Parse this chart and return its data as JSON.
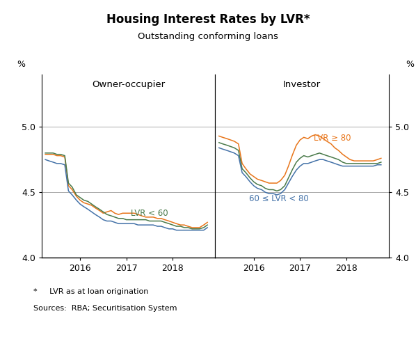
{
  "title": "Housing Interest Rates by LVR*",
  "subtitle": "Outstanding conforming loans",
  "footnote1": "*     LVR as at loan origination",
  "footnote2": "Sources:  RBA; Securitisation System",
  "left_panel_title": "Owner-occupier",
  "right_panel_title": "Investor",
  "ylabel_left": "%",
  "ylabel_right": "%",
  "ylim": [
    4.0,
    5.4
  ],
  "yticks": [
    4.0,
    4.5,
    5.0
  ],
  "colors": {
    "orange": "#E8751A",
    "green": "#4A7A4A",
    "blue": "#4472A8"
  },
  "left_label": "LVR < 60",
  "right_label_orange": "LVR ≥ 80",
  "right_label_blue": "60 ≤ LVR < 80",
  "owner_occupier": {
    "dates_num": [
      2015.25,
      2015.33,
      2015.42,
      2015.5,
      2015.58,
      2015.67,
      2015.75,
      2015.83,
      2015.92,
      2016.0,
      2016.08,
      2016.17,
      2016.25,
      2016.33,
      2016.42,
      2016.5,
      2016.58,
      2016.67,
      2016.75,
      2016.83,
      2016.92,
      2017.0,
      2017.08,
      2017.17,
      2017.25,
      2017.33,
      2017.42,
      2017.5,
      2017.58,
      2017.67,
      2017.75,
      2017.83,
      2017.92,
      2018.0,
      2018.08,
      2018.17,
      2018.25,
      2018.33,
      2018.42,
      2018.5,
      2018.58,
      2018.67,
      2018.75
    ],
    "orange": [
      4.79,
      4.79,
      4.79,
      4.78,
      4.78,
      4.77,
      4.55,
      4.52,
      4.47,
      4.44,
      4.42,
      4.41,
      4.4,
      4.38,
      4.36,
      4.34,
      4.35,
      4.36,
      4.34,
      4.33,
      4.34,
      4.34,
      4.34,
      4.34,
      4.33,
      4.32,
      4.31,
      4.31,
      4.31,
      4.3,
      4.3,
      4.29,
      4.28,
      4.27,
      4.26,
      4.25,
      4.25,
      4.24,
      4.23,
      4.23,
      4.23,
      4.25,
      4.27
    ],
    "green": [
      4.8,
      4.8,
      4.8,
      4.79,
      4.79,
      4.78,
      4.57,
      4.54,
      4.48,
      4.46,
      4.44,
      4.43,
      4.41,
      4.39,
      4.37,
      4.35,
      4.33,
      4.32,
      4.31,
      4.3,
      4.3,
      4.29,
      4.29,
      4.29,
      4.29,
      4.29,
      4.29,
      4.28,
      4.28,
      4.28,
      4.28,
      4.27,
      4.26,
      4.25,
      4.24,
      4.24,
      4.23,
      4.23,
      4.22,
      4.22,
      4.22,
      4.23,
      4.25
    ],
    "blue": [
      4.75,
      4.74,
      4.73,
      4.72,
      4.72,
      4.71,
      4.51,
      4.48,
      4.44,
      4.41,
      4.39,
      4.37,
      4.35,
      4.33,
      4.31,
      4.29,
      4.28,
      4.28,
      4.27,
      4.26,
      4.26,
      4.26,
      4.26,
      4.26,
      4.25,
      4.25,
      4.25,
      4.25,
      4.25,
      4.24,
      4.24,
      4.23,
      4.22,
      4.22,
      4.21,
      4.21,
      4.21,
      4.21,
      4.21,
      4.21,
      4.21,
      4.21,
      4.23
    ]
  },
  "investor": {
    "dates_num": [
      2015.25,
      2015.33,
      2015.42,
      2015.5,
      2015.58,
      2015.67,
      2015.75,
      2015.83,
      2015.92,
      2016.0,
      2016.08,
      2016.17,
      2016.25,
      2016.33,
      2016.42,
      2016.5,
      2016.58,
      2016.67,
      2016.75,
      2016.83,
      2016.92,
      2017.0,
      2017.08,
      2017.17,
      2017.25,
      2017.33,
      2017.42,
      2017.5,
      2017.58,
      2017.67,
      2017.75,
      2017.83,
      2017.92,
      2018.0,
      2018.08,
      2018.17,
      2018.25,
      2018.33,
      2018.42,
      2018.5,
      2018.58,
      2018.67,
      2018.75
    ],
    "orange": [
      4.93,
      4.92,
      4.91,
      4.9,
      4.89,
      4.87,
      4.72,
      4.68,
      4.64,
      4.62,
      4.6,
      4.59,
      4.58,
      4.57,
      4.57,
      4.57,
      4.59,
      4.63,
      4.7,
      4.78,
      4.86,
      4.9,
      4.92,
      4.91,
      4.93,
      4.94,
      4.93,
      4.91,
      4.89,
      4.87,
      4.84,
      4.82,
      4.79,
      4.77,
      4.75,
      4.74,
      4.74,
      4.74,
      4.74,
      4.74,
      4.74,
      4.75,
      4.76
    ],
    "green": [
      4.88,
      4.87,
      4.86,
      4.85,
      4.84,
      4.82,
      4.68,
      4.65,
      4.61,
      4.58,
      4.56,
      4.55,
      4.53,
      4.52,
      4.52,
      4.51,
      4.52,
      4.55,
      4.61,
      4.67,
      4.73,
      4.76,
      4.78,
      4.77,
      4.78,
      4.79,
      4.8,
      4.79,
      4.78,
      4.77,
      4.76,
      4.75,
      4.73,
      4.72,
      4.72,
      4.72,
      4.72,
      4.72,
      4.72,
      4.72,
      4.72,
      4.72,
      4.73
    ],
    "blue": [
      4.84,
      4.83,
      4.82,
      4.81,
      4.8,
      4.78,
      4.65,
      4.62,
      4.58,
      4.55,
      4.53,
      4.52,
      4.5,
      4.49,
      4.49,
      4.48,
      4.49,
      4.52,
      4.57,
      4.62,
      4.67,
      4.7,
      4.72,
      4.72,
      4.73,
      4.74,
      4.75,
      4.75,
      4.74,
      4.73,
      4.72,
      4.71,
      4.7,
      4.7,
      4.7,
      4.7,
      4.7,
      4.7,
      4.7,
      4.7,
      4.7,
      4.71,
      4.71
    ]
  },
  "xticks": [
    2016.0,
    2017.0,
    2018.0
  ],
  "xticklabels": [
    "2016",
    "2017",
    "2018"
  ],
  "xlim": [
    2015.17,
    2018.92
  ]
}
